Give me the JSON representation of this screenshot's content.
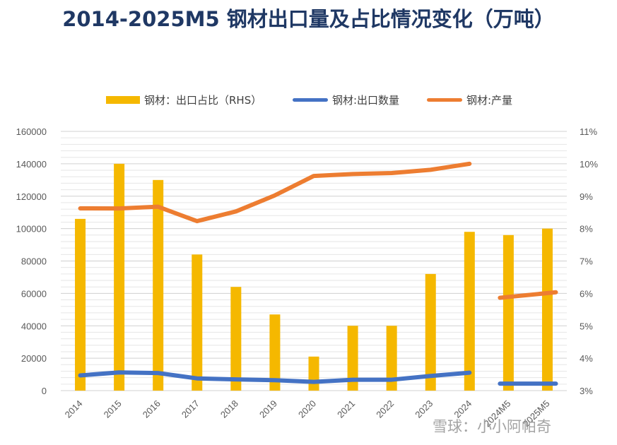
{
  "chart_data": {
    "type": "bar+line",
    "title": "2014-2025M5 钢材出口量及占比情况变化（万吨）",
    "categories": [
      "2014",
      "2015",
      "2016",
      "2017",
      "2018",
      "2019",
      "2020",
      "2021",
      "2022",
      "2023",
      "2024",
      "2024M5",
      "2025M5"
    ],
    "bar_series": {
      "name": "钢材：出口占比（RHS）",
      "axis": "right",
      "color": "#f5b800",
      "values": [
        0.083,
        0.1,
        0.095,
        0.072,
        0.062,
        0.0535,
        0.0405,
        0.05,
        0.05,
        0.066,
        0.079,
        0.078,
        0.08
      ]
    },
    "line_series": [
      {
        "name": "钢材:出口数量",
        "axis": "left",
        "color": "#4472c4",
        "values": [
          9380,
          11240,
          10840,
          7540,
          6930,
          6430,
          5370,
          6690,
          6730,
          9030,
          11070,
          null,
          null
        ],
        "extra_values": [
          4300,
          4300
        ]
      },
      {
        "name": "钢材:产量",
        "axis": "left",
        "color": "#ed7d31",
        "values": [
          112500,
          112400,
          113500,
          104600,
          110600,
          120500,
          132500,
          133700,
          134300,
          136300,
          140000,
          null,
          null
        ],
        "extra_values": [
          57300,
          60700
        ]
      }
    ],
    "left_axis": {
      "min": 0,
      "max": 160000,
      "ticks": [
        "0",
        "20000",
        "40000",
        "60000",
        "80000",
        "100000",
        "120000",
        "140000",
        "160000"
      ]
    },
    "right_axis": {
      "min": 0.03,
      "max": 0.11,
      "ticks": [
        "3%",
        "4%",
        "5%",
        "6%",
        "7%",
        "8%",
        "9%",
        "10%",
        "11%"
      ]
    },
    "grid": true,
    "legend_position": "top"
  },
  "legend": [
    {
      "label": "钢材：出口占比（RHS）"
    },
    {
      "label": "钢材:出口数量"
    },
    {
      "label": "钢材:产量"
    }
  ],
  "watermark": "雪球：小小阿帕奇",
  "colors": {
    "title": "#1f3864",
    "bar": "#f5b800",
    "export_line": "#4472c4",
    "production_line": "#ed7d31"
  }
}
